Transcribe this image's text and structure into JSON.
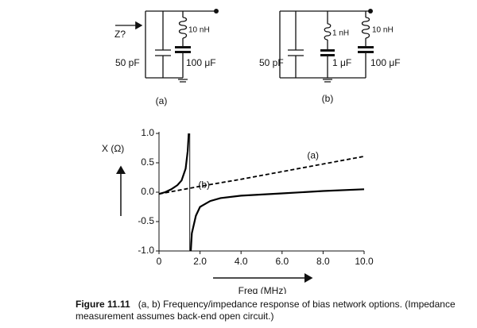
{
  "diagrams": [
    {
      "label": "(a)",
      "input": "Z?",
      "inductor": "10 nH",
      "capacitor": "50 pF",
      "bypass": "100 μF"
    },
    {
      "label": "(b)",
      "capacitor": "50 pF",
      "inductor_small": "1 nH",
      "cap_small": "1 μF",
      "inductor": "10 nH",
      "bypass": "100 μF"
    }
  ],
  "chart_data": {
    "type": "line",
    "ylabel": "X (Ω)",
    "xlabel": "Freq (MHz)",
    "xlim": [
      0,
      10
    ],
    "ylim": [
      -1,
      1
    ],
    "xticks": [
      0,
      {
        "value": 2,
        "label": "2.0"
      },
      {
        "value": 4,
        "label": "4.0"
      },
      {
        "value": 6,
        "label": "6.0"
      },
      {
        "value": 8,
        "label": "8.0"
      },
      {
        "value": 10,
        "label": "10.0"
      }
    ],
    "yticks": [
      {
        "value": -1,
        "label": "-1.0"
      },
      -0.5,
      {
        "value": 0,
        "label": "0.0"
      },
      0.5,
      {
        "value": 1,
        "label": "1.0"
      }
    ],
    "vline": 1.5,
    "series": [
      {
        "name": "(a)",
        "color": "#000000",
        "style": "dashed",
        "x": [
          0,
          2,
          4,
          6,
          8,
          10
        ],
        "values": [
          -0.03,
          0.1,
          0.22,
          0.35,
          0.48,
          0.61
        ]
      },
      {
        "name": "(b)",
        "color": "#000000",
        "style": "solid",
        "x": [
          0,
          0.3,
          0.6,
          0.9,
          1.1,
          1.3,
          1.4,
          1.45,
          null,
          1.55,
          1.6,
          1.8,
          2,
          2.5,
          3,
          4,
          6,
          8,
          10
        ],
        "values": [
          -0.03,
          0,
          0.05,
          0.12,
          0.2,
          0.4,
          0.7,
          1,
          null,
          -1,
          -0.7,
          -0.4,
          -0.25,
          -0.15,
          -0.1,
          -0.06,
          -0.02,
          0.02,
          0.05
        ]
      }
    ]
  },
  "caption": {
    "label": "Figure 11.11",
    "text": "(a, b) Frequency/impedance response of bias network options. (Impedance measurement assumes back-end open circuit.)"
  }
}
